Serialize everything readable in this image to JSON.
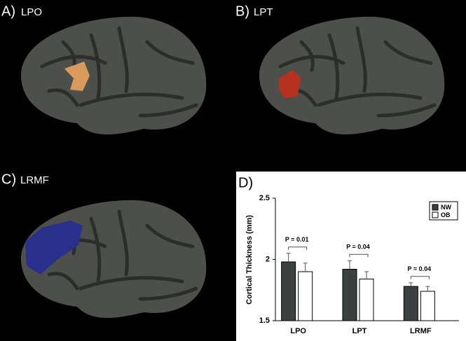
{
  "panels": [
    {
      "label": "A)",
      "title": "LPO"
    },
    {
      "label": "B)",
      "title": "LPT"
    },
    {
      "label": "C)",
      "title": "LRMF"
    }
  ],
  "chart_data": {
    "type": "bar",
    "panel_label": "D)",
    "y_label": "Cortical Thickness (mm)",
    "categories": [
      "LPO",
      "LPT",
      "LRMF"
    ],
    "series": [
      {
        "name": "NW",
        "color": "#3b4040",
        "values": [
          1.98,
          1.92,
          1.78
        ],
        "errors": [
          0.07,
          0.07,
          0.03
        ]
      },
      {
        "name": "OB",
        "color": "#ffffff",
        "values": [
          1.9,
          1.84,
          1.74
        ],
        "errors": [
          0.07,
          0.06,
          0.04
        ]
      }
    ],
    "annotations": [
      "P = 0.01",
      "P = 0.04",
      "P = 0.04"
    ],
    "ylim": [
      1.5,
      2.5
    ],
    "yticks": [
      1.5,
      2,
      2.5
    ],
    "legend": "upper right"
  }
}
